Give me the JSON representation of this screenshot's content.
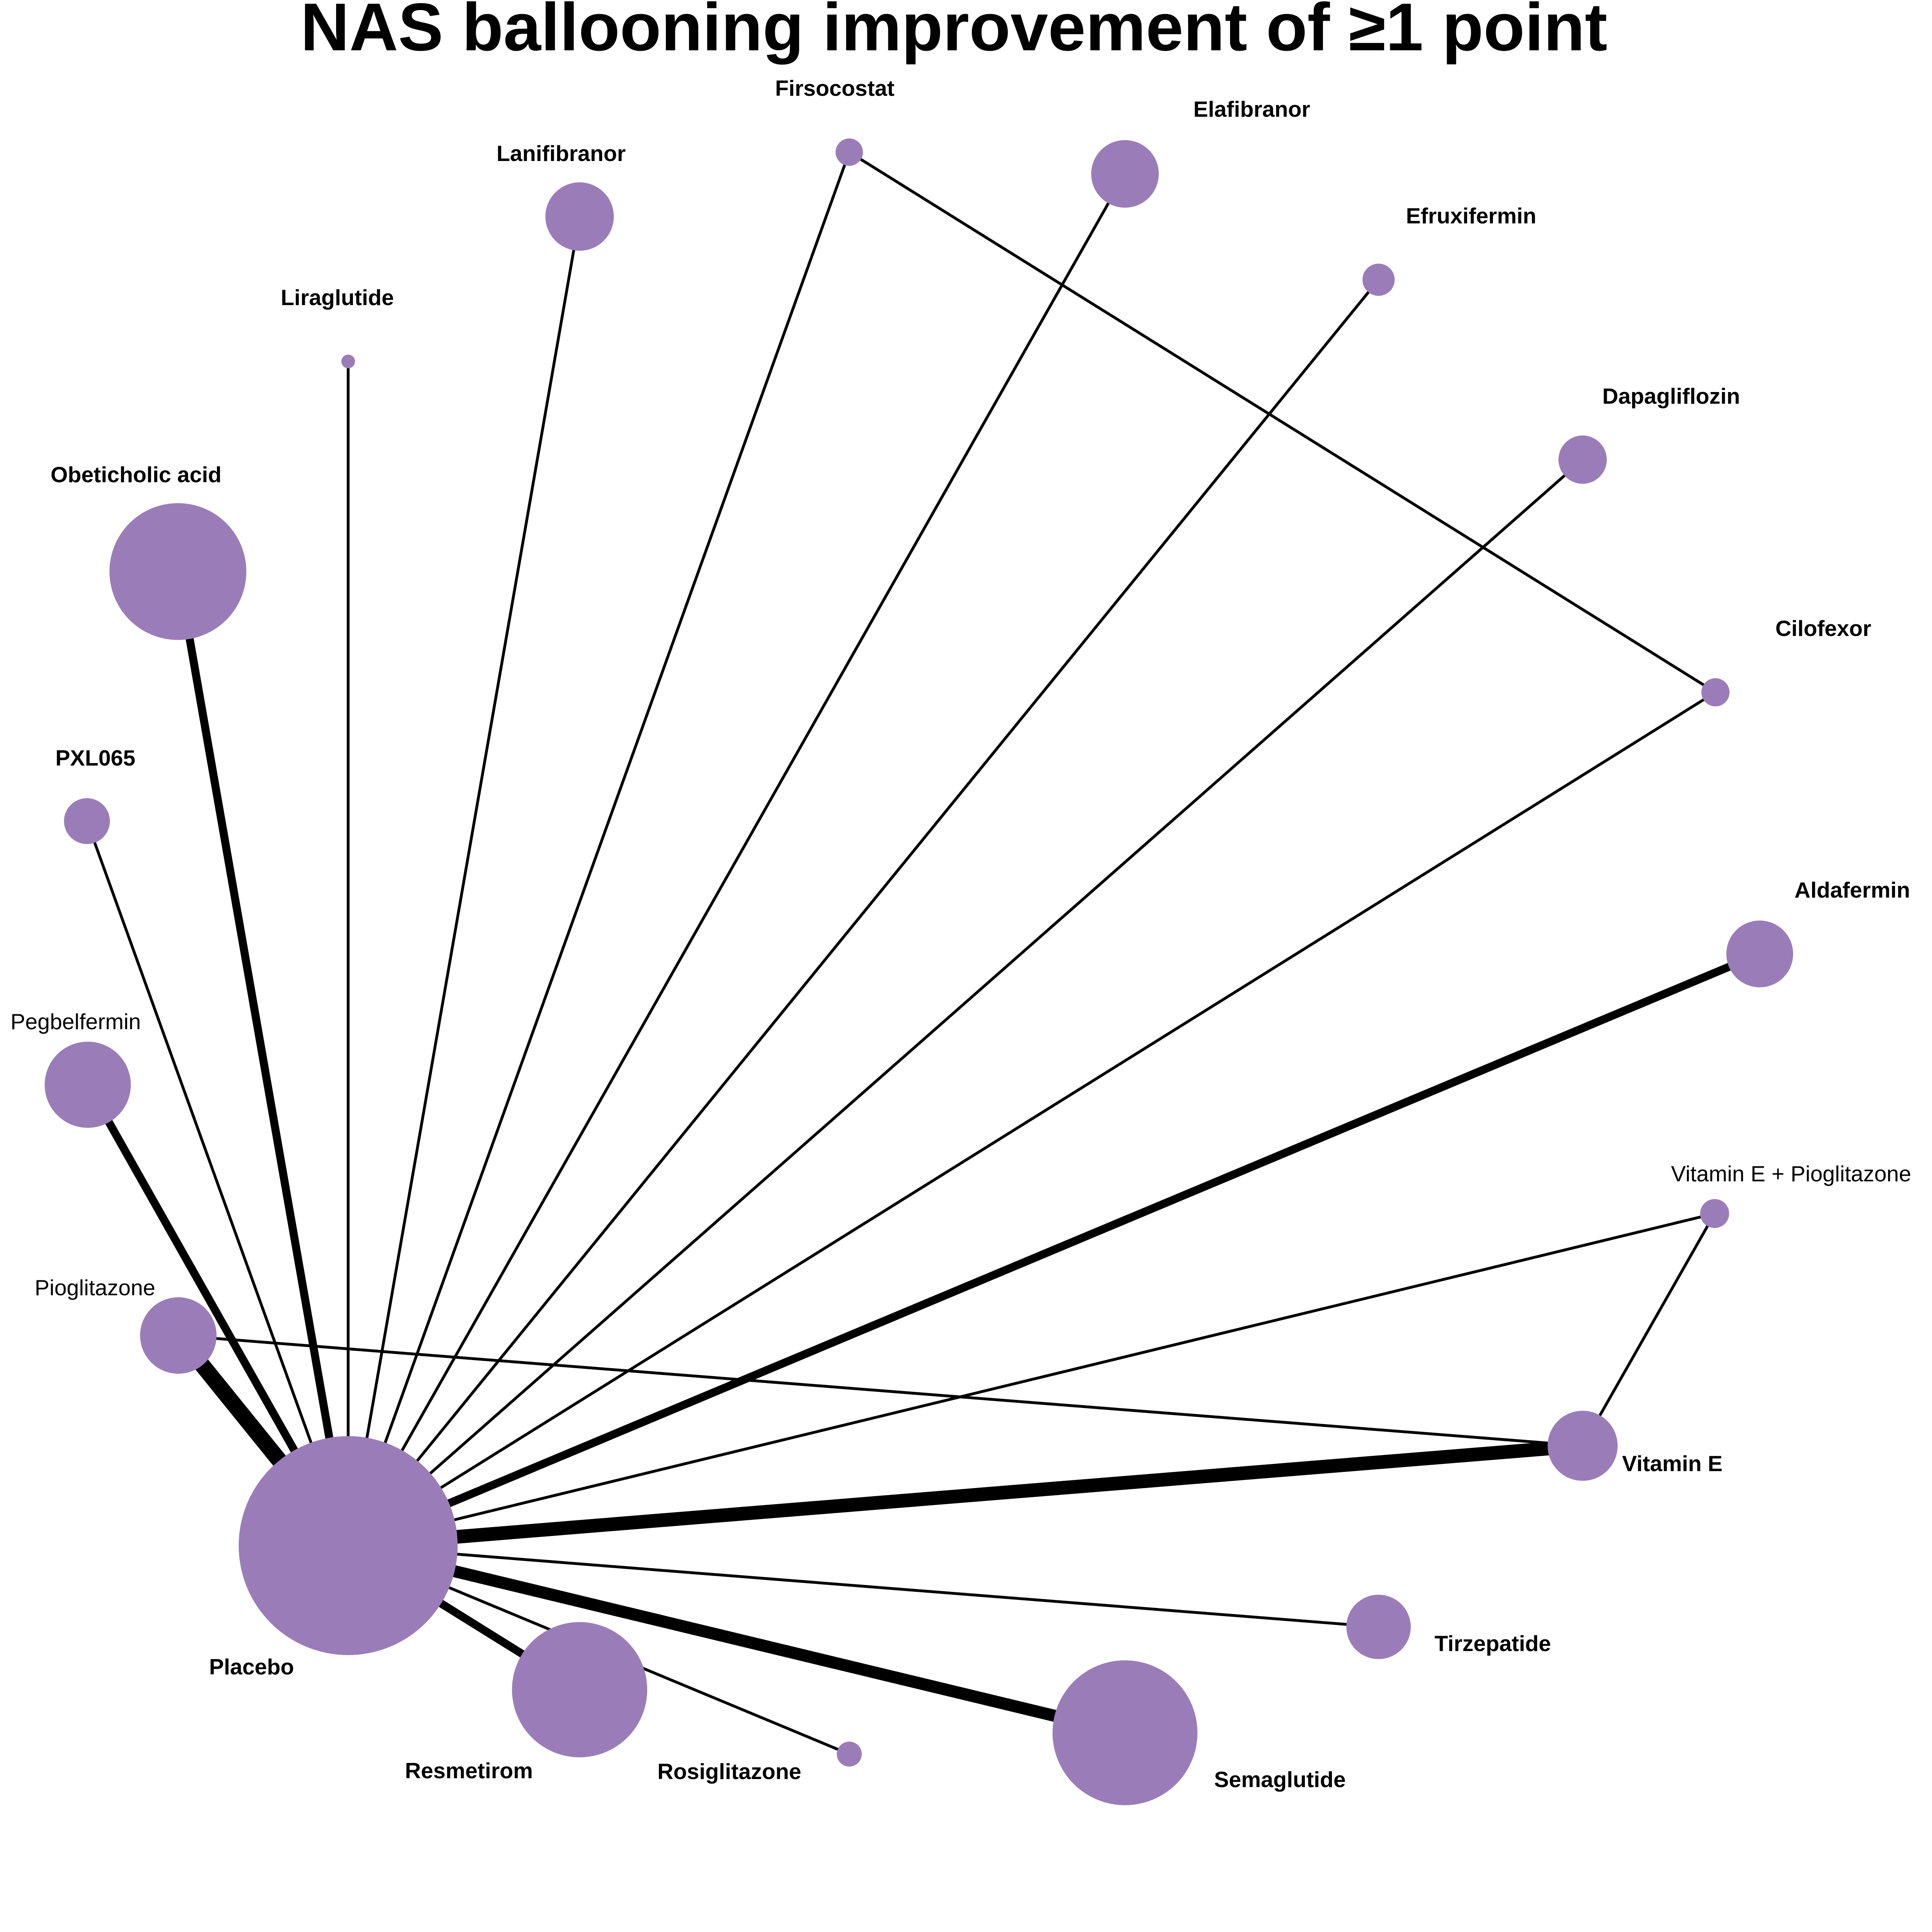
{
  "title": "NAS ballooning improvement of ≥1 point",
  "colors": {
    "node": "#9a7db8",
    "edge": "#000000",
    "background": "#ffffff"
  },
  "nodes": [
    {
      "id": "firsocostat",
      "label": "Firsocostat",
      "label_weight": "bold"
    },
    {
      "id": "elafibranor",
      "label": "Elafibranor",
      "label_weight": "bold"
    },
    {
      "id": "lanifibranor",
      "label": "Lanifibranor",
      "label_weight": "bold"
    },
    {
      "id": "efruxifermin",
      "label": "Efruxifermin",
      "label_weight": "bold"
    },
    {
      "id": "liraglutide",
      "label": "Liraglutide",
      "label_weight": "bold"
    },
    {
      "id": "dapagliflozin",
      "label": "Dapagliflozin",
      "label_weight": "bold"
    },
    {
      "id": "obeticholic-acid",
      "label": "Obeticholic acid",
      "label_weight": "bold"
    },
    {
      "id": "cilofexor",
      "label": "Cilofexor",
      "label_weight": "bold"
    },
    {
      "id": "pxl065",
      "label": "PXL065",
      "label_weight": "bold"
    },
    {
      "id": "aldafermin",
      "label": "Aldafermin",
      "label_weight": "bold"
    },
    {
      "id": "pegbelfermin",
      "label": "Pegbelfermin",
      "label_weight": "normal"
    },
    {
      "id": "vitamin-e-pioglitazone",
      "label": "Vitamin E + Pioglitazone",
      "label_weight": "normal"
    },
    {
      "id": "pioglitazone",
      "label": "Pioglitazone",
      "label_weight": "normal"
    },
    {
      "id": "vitamin-e",
      "label": "Vitamin E",
      "label_weight": "bold"
    },
    {
      "id": "placebo",
      "label": "Placebo",
      "label_weight": "bold"
    },
    {
      "id": "tirzepatide",
      "label": "Tirzepatide",
      "label_weight": "bold"
    },
    {
      "id": "resmetirom",
      "label": "Resmetirom",
      "label_weight": "bold"
    },
    {
      "id": "rosiglitazone",
      "label": "Rosiglitazone",
      "label_weight": "bold"
    },
    {
      "id": "semaglutide",
      "label": "Semaglutide",
      "label_weight": "bold"
    }
  ],
  "edges": [
    {
      "from": "placebo",
      "to": "firsocostat"
    },
    {
      "from": "placebo",
      "to": "elafibranor"
    },
    {
      "from": "placebo",
      "to": "lanifibranor"
    },
    {
      "from": "placebo",
      "to": "efruxifermin"
    },
    {
      "from": "placebo",
      "to": "liraglutide"
    },
    {
      "from": "placebo",
      "to": "dapagliflozin"
    },
    {
      "from": "placebo",
      "to": "obeticholic-acid"
    },
    {
      "from": "placebo",
      "to": "cilofexor"
    },
    {
      "from": "placebo",
      "to": "pxl065"
    },
    {
      "from": "placebo",
      "to": "aldafermin"
    },
    {
      "from": "placebo",
      "to": "pegbelfermin"
    },
    {
      "from": "placebo",
      "to": "vitamin-e-pioglitazone"
    },
    {
      "from": "placebo",
      "to": "pioglitazone"
    },
    {
      "from": "placebo",
      "to": "vitamin-e"
    },
    {
      "from": "placebo",
      "to": "tirzepatide"
    },
    {
      "from": "placebo",
      "to": "resmetirom"
    },
    {
      "from": "placebo",
      "to": "rosiglitazone"
    },
    {
      "from": "placebo",
      "to": "semaglutide"
    },
    {
      "from": "firsocostat",
      "to": "cilofexor"
    },
    {
      "from": "pioglitazone",
      "to": "vitamin-e"
    },
    {
      "from": "vitamin-e",
      "to": "vitamin-e-pioglitazone"
    }
  ]
}
